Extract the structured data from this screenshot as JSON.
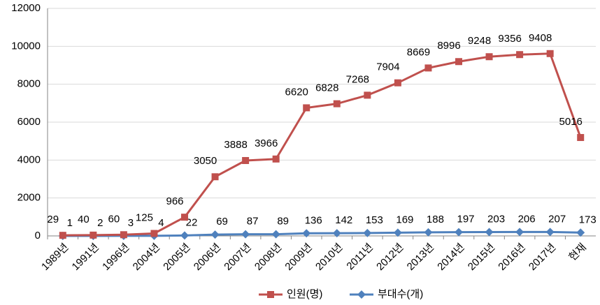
{
  "chart_data": {
    "type": "line",
    "stacked": true,
    "categories": [
      "1989년",
      "1991년",
      "1996년",
      "2004년",
      "2005년",
      "2006년",
      "2007년",
      "2008년",
      "2009년",
      "2010년",
      "2011년",
      "2012년",
      "2013년",
      "2014년",
      "2015년",
      "2016년",
      "2017년",
      "현재"
    ],
    "series": [
      {
        "name": "인원(명)",
        "color": "#c0504d",
        "marker": "square",
        "values": [
          29,
          40,
          60,
          125,
          966,
          3050,
          3888,
          3966,
          6620,
          6828,
          7268,
          7904,
          8669,
          8996,
          9248,
          9356,
          9408,
          5016
        ]
      },
      {
        "name": "부대수(개)",
        "color": "#4f81bd",
        "marker": "diamond",
        "values": [
          1,
          2,
          3,
          4,
          22,
          69,
          87,
          89,
          136,
          142,
          153,
          169,
          188,
          197,
          203,
          206,
          207,
          173
        ]
      }
    ],
    "ylim": [
      0,
      12000
    ],
    "yticks": [
      0,
      2000,
      4000,
      6000,
      8000,
      10000,
      12000
    ],
    "grid": true,
    "legend": "bottom"
  }
}
